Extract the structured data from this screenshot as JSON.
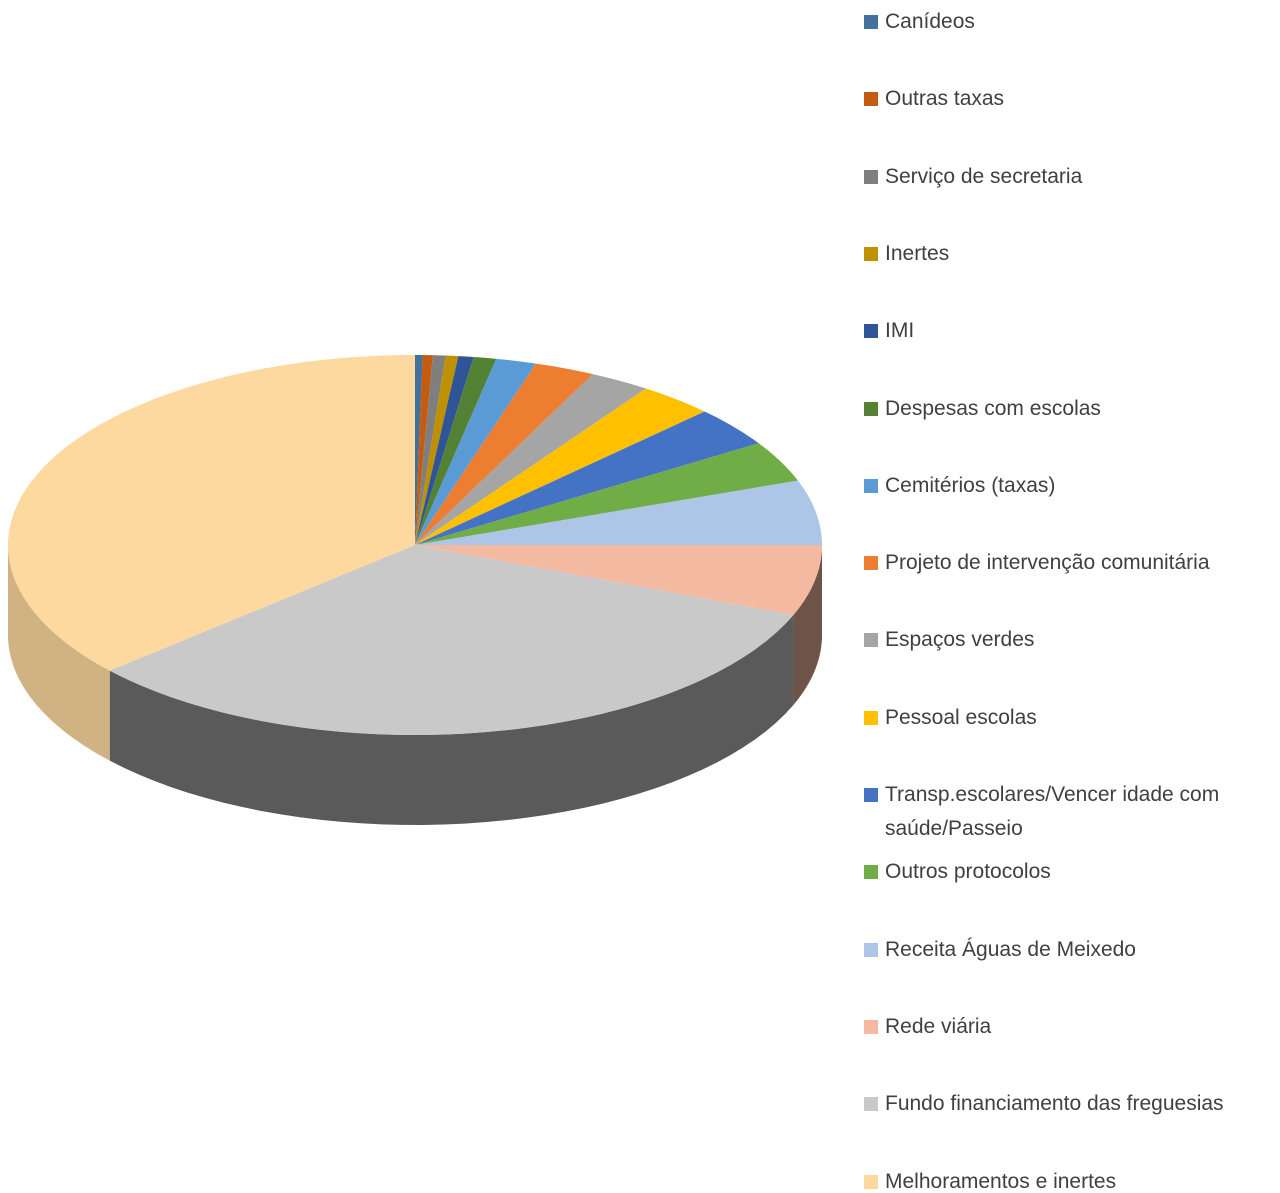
{
  "chart_data": {
    "type": "pie3d",
    "categories": [
      "Canídeos",
      "Outras taxas",
      "Serviço de secretaria",
      "Inertes",
      "IMI",
      "Despesas com escolas",
      "Cemitérios (taxas)",
      "Projeto de intervenção comunitária",
      "Espaços verdes",
      "Pessoal escolas",
      "Transp.escolares/Vencer idade com saúde/Passeio",
      "Outros protocolos",
      "Receita Águas de Meixedo",
      "Rede viária",
      "Fundo financiamento das freguesias",
      "Melhoramentos e inertes"
    ],
    "values": [
      0.3,
      0.4,
      0.5,
      0.5,
      0.6,
      0.9,
      1.6,
      2.4,
      2.4,
      3,
      3.4,
      3.5,
      5.5,
      6,
      32.5,
      36.5
    ],
    "colors": [
      "#41719c",
      "#c55a11",
      "#7f7f7f",
      "#bf9000",
      "#2f5597",
      "#548235",
      "#5b9bd5",
      "#ed7d31",
      "#a5a5a5",
      "#ffc000",
      "#4472c4",
      "#70ad47",
      "#adc5e7",
      "#f4b9a1",
      "#c9c9c9",
      "#fdd89f"
    ],
    "legend": "right"
  }
}
